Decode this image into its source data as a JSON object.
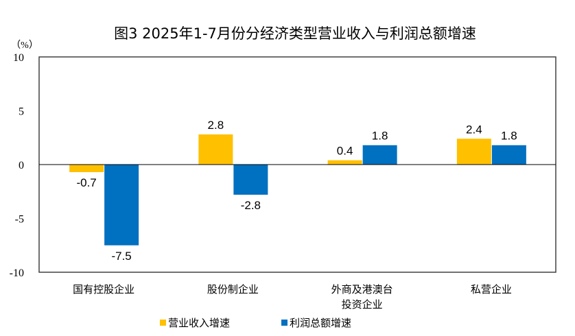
{
  "chart_data": {
    "type": "bar",
    "title": "图3 2025年1-7月份分经济类型营业收入与利润总额增速",
    "ylabel": "（%）",
    "ylim": [
      -10,
      10
    ],
    "yticks": [
      10,
      5,
      0,
      -5,
      -10
    ],
    "grid": false,
    "legend_position": "bottom",
    "categories": [
      [
        "国有控股企业"
      ],
      [
        "股份制企业"
      ],
      [
        "外商及港澳台",
        "投资企业"
      ],
      [
        "私营企业"
      ]
    ],
    "series": [
      {
        "name": "营业收入增速",
        "color": "#FFC000",
        "values": [
          -0.7,
          2.8,
          0.4,
          2.4
        ]
      },
      {
        "name": "利润总额增速",
        "color": "#0070C0",
        "values": [
          -7.5,
          -2.8,
          1.8,
          1.8
        ]
      }
    ]
  }
}
